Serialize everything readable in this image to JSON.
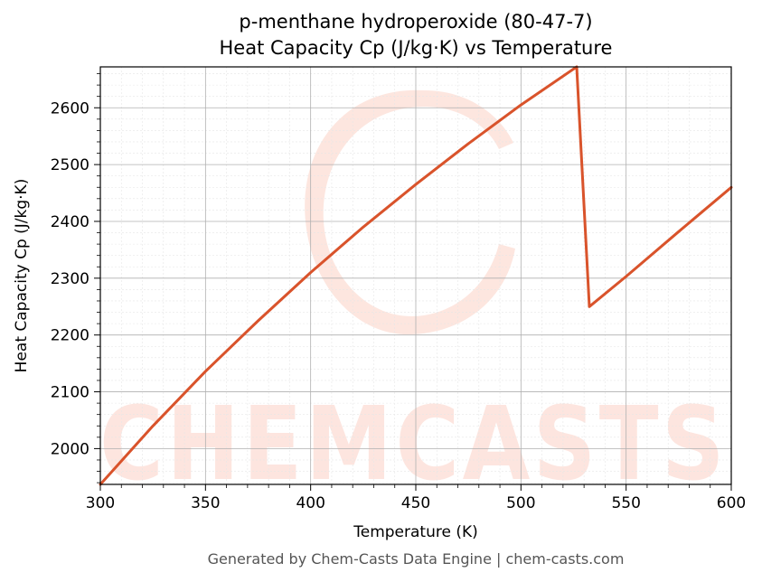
{
  "chart_data": {
    "type": "line",
    "title": "p-menthane hydroperoxide (80-47-7)",
    "subtitle": "Heat Capacity Cp (J/kg·K) vs Temperature",
    "xlabel": "Temperature (K)",
    "ylabel": "Heat Capacity Cp (J/kg·K)",
    "xlim": [
      300,
      600
    ],
    "ylim": [
      1937,
      2672
    ],
    "xticks": [
      300,
      350,
      400,
      450,
      500,
      550,
      600
    ],
    "yticks": [
      2000,
      2100,
      2200,
      2300,
      2400,
      2500,
      2600
    ],
    "grid": true,
    "line_color": "#d9532b",
    "series": [
      {
        "x": [
          300,
          325,
          350,
          375,
          400,
          425,
          450,
          475,
          500,
          526.5,
          532.5,
          550,
          575,
          600
        ],
        "values": [
          1937,
          2040,
          2136,
          2225,
          2310,
          2390,
          2465,
          2537,
          2605,
          2672,
          2250,
          2303,
          2382,
          2460
        ]
      }
    ]
  },
  "watermark": {
    "text": "CHEMCASTS",
    "color": "#fde3dc"
  },
  "footer": "Generated by Chem-Casts Data Engine | chem-casts.com"
}
